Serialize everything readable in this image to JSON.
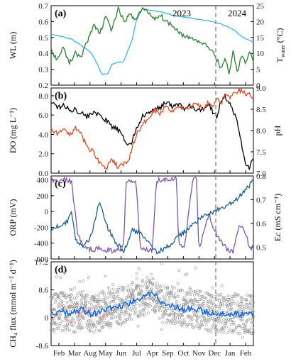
{
  "chart_data": [
    {
      "panel": "(a)",
      "type": "line",
      "ylabel_left": "WL (m)",
      "ylabel_right_main": "T",
      "ylabel_right_sub": "water",
      "ylabel_right_unit": "(°C)",
      "ylim_left": [
        0.2,
        0.7
      ],
      "yticks_left": [
        "0.2",
        "0.3",
        "0.4",
        "0.5",
        "0.6",
        "0.7"
      ],
      "ylim_right": [
        0,
        25
      ],
      "yticks_right": [
        "0",
        "5",
        "10",
        "15",
        "20",
        "25"
      ],
      "annotations": [
        "2023",
        "2024"
      ],
      "series": [
        {
          "axis": "left",
          "color": "#3fb3e0",
          "x": [
            0,
            0.04,
            0.07,
            0.1,
            0.15,
            0.2,
            0.23,
            0.25,
            0.28,
            0.3,
            0.32,
            0.36,
            0.38,
            0.4,
            0.42,
            0.45,
            0.5,
            0.55,
            0.6,
            0.65,
            0.7,
            0.75,
            0.8,
            0.85,
            0.9,
            0.95,
            1.0
          ],
          "values": [
            0.52,
            0.51,
            0.5,
            0.49,
            0.45,
            0.4,
            0.33,
            0.27,
            0.27,
            0.33,
            0.34,
            0.35,
            0.42,
            0.48,
            0.6,
            0.68,
            0.67,
            0.66,
            0.64,
            0.63,
            0.62,
            0.61,
            0.6,
            0.58,
            0.55,
            0.5,
            0.47
          ]
        },
        {
          "axis": "right",
          "color": "#2e7d32",
          "x": [
            0,
            0.03,
            0.06,
            0.09,
            0.12,
            0.15,
            0.18,
            0.21,
            0.24,
            0.27,
            0.3,
            0.33,
            0.36,
            0.39,
            0.42,
            0.45,
            0.48,
            0.51,
            0.54,
            0.57,
            0.6,
            0.63,
            0.66,
            0.69,
            0.72,
            0.75,
            0.78,
            0.8,
            0.82,
            0.84,
            0.86,
            0.88,
            0.9,
            0.92,
            0.94,
            0.96,
            0.98,
            1.0
          ],
          "values": [
            11,
            8,
            12,
            7,
            10,
            9,
            14,
            19,
            16,
            22,
            17,
            24,
            20,
            22,
            21,
            24,
            23,
            21,
            22,
            20,
            19,
            17,
            15,
            15,
            14,
            13,
            12,
            10,
            8,
            5,
            9,
            3,
            11,
            4,
            9,
            7,
            10,
            8
          ]
        }
      ]
    },
    {
      "panel": "(b)",
      "type": "line",
      "ylabel_left": "DO (mg L⁻¹)",
      "ylabel_right": "pH",
      "ylim_left": [
        0,
        8.8
      ],
      "yticks_left": [
        "0.0",
        "2.0",
        "4.0",
        "6.0",
        "8.0"
      ],
      "ylim_right": [
        7.0,
        9.0
      ],
      "yticks_right": [
        "7.0",
        "7.5",
        "8.0",
        "8.5",
        "9.0"
      ],
      "series": [
        {
          "axis": "left",
          "color": "#000000",
          "x": [
            0,
            0.03,
            0.06,
            0.09,
            0.12,
            0.15,
            0.18,
            0.21,
            0.24,
            0.27,
            0.3,
            0.33,
            0.36,
            0.39,
            0.42,
            0.45,
            0.48,
            0.51,
            0.54,
            0.57,
            0.6,
            0.63,
            0.66,
            0.69,
            0.72,
            0.75,
            0.78,
            0.8,
            0.82,
            0.84,
            0.86,
            0.88,
            0.9,
            0.92,
            0.94,
            0.96,
            0.98,
            1.0
          ],
          "values": [
            7.4,
            6.8,
            7.0,
            6.5,
            6.6,
            6.2,
            5.8,
            6.4,
            5.9,
            5.5,
            4.8,
            4.5,
            3.5,
            2.8,
            4.5,
            5.8,
            6.2,
            6.5,
            6.8,
            7.4,
            6.8,
            7.2,
            6.6,
            7.0,
            6.4,
            6.6,
            7.2,
            6.3,
            5.8,
            7.6,
            8.0,
            7.3,
            6.5,
            5.2,
            3.2,
            1.0,
            0.6,
            1.5
          ]
        },
        {
          "axis": "right",
          "color": "#d84b2a",
          "x": [
            0,
            0.03,
            0.06,
            0.09,
            0.12,
            0.15,
            0.18,
            0.21,
            0.24,
            0.27,
            0.3,
            0.33,
            0.36,
            0.39,
            0.42,
            0.45,
            0.48,
            0.51,
            0.54,
            0.57,
            0.6,
            0.63,
            0.66,
            0.69,
            0.72,
            0.75,
            0.78,
            0.8,
            0.82,
            0.84,
            0.86,
            0.88,
            0.9,
            0.92,
            0.94,
            0.96,
            0.98,
            1.0
          ],
          "values": [
            8.0,
            7.95,
            8.0,
            7.9,
            8.05,
            7.9,
            7.6,
            7.5,
            7.25,
            7.1,
            7.3,
            7.15,
            7.2,
            7.4,
            7.9,
            8.1,
            8.3,
            8.5,
            8.4,
            8.6,
            8.45,
            8.6,
            8.5,
            8.55,
            8.65,
            8.5,
            8.7,
            8.55,
            8.8,
            8.6,
            8.9,
            8.75,
            8.85,
            8.9,
            8.95,
            8.85,
            8.85,
            8.8
          ]
        }
      ]
    },
    {
      "panel": "(c)",
      "type": "line",
      "ylabel_left": "ORP (mV)",
      "ylabel_right": "Ec (mS cm⁻¹)",
      "ylim_left": [
        -600,
        450
      ],
      "yticks_left": [
        "-600",
        "-400",
        "-200",
        "0",
        "200",
        "400"
      ],
      "ylim_right": [
        0.45,
        0.8
      ],
      "yticks_right": [
        "0.5",
        "0.6",
        "0.7",
        "0.8"
      ],
      "series": [
        {
          "axis": "left",
          "color": "#7e57a8",
          "x": [
            0,
            0.06,
            0.1,
            0.13,
            0.16,
            0.2,
            0.25,
            0.3,
            0.34,
            0.36,
            0.37,
            0.42,
            0.44,
            0.45,
            0.5,
            0.52,
            0.53,
            0.6,
            0.62,
            0.63,
            0.66,
            0.7,
            0.72,
            0.73,
            0.75,
            0.78,
            0.8,
            0.84,
            0.87,
            0.9,
            0.93,
            0.96,
            0.98,
            1.0
          ],
          "values": [
            390,
            400,
            385,
            -250,
            -460,
            -480,
            -470,
            -500,
            -470,
            -380,
            390,
            400,
            -460,
            -470,
            -490,
            390,
            400,
            420,
            420,
            -400,
            -450,
            420,
            400,
            -480,
            -300,
            -10,
            -200,
            -380,
            -480,
            -500,
            -180,
            -260,
            -450,
            -460
          ]
        },
        {
          "axis": "right",
          "color": "#1f5f8b",
          "x": [
            0,
            0.04,
            0.08,
            0.1,
            0.12,
            0.16,
            0.2,
            0.24,
            0.28,
            0.32,
            0.34,
            0.36,
            0.4,
            0.44,
            0.48,
            0.52,
            0.56,
            0.6,
            0.64,
            0.68,
            0.72,
            0.76,
            0.8,
            0.84,
            0.88,
            0.92,
            0.96,
            1.0
          ],
          "values": [
            0.58,
            0.59,
            0.61,
            0.66,
            0.53,
            0.5,
            0.55,
            0.7,
            0.58,
            0.52,
            0.5,
            0.48,
            0.57,
            0.56,
            0.53,
            0.48,
            0.49,
            0.52,
            0.55,
            0.58,
            0.61,
            0.63,
            0.65,
            0.66,
            0.68,
            0.7,
            0.74,
            0.78
          ]
        }
      ]
    },
    {
      "panel": "(d)",
      "type": "scatter",
      "ylabel_left": "CH₄ flux (mmol m⁻² d⁻¹)",
      "ylim_left": [
        -8.6,
        17.2
      ],
      "yticks_left": [
        "-8.6",
        "0",
        "8.6",
        "17.2"
      ],
      "series": [
        {
          "name": "",
          "color": "#1e6fd9",
          "x": [
            0,
            0.05,
            0.1,
            0.15,
            0.2,
            0.25,
            0.3,
            0.35,
            0.4,
            0.45,
            0.5,
            0.55,
            0.6,
            0.65,
            0.7,
            0.75,
            0.8,
            0.85,
            0.9,
            0.95,
            1.0
          ],
          "values": [
            1.5,
            2.0,
            1.2,
            2.5,
            1.0,
            2.0,
            3.0,
            3.5,
            5.0,
            6.0,
            8.0,
            4.5,
            3.5,
            2.5,
            2.8,
            2.0,
            1.5,
            1.2,
            1.0,
            1.0,
            0.9
          ]
        }
      ]
    }
  ],
  "x_tick_labels": [
    "Feb",
    "Mar",
    "Aug",
    "May",
    "Jun",
    "Jul",
    "Apr",
    "Sep",
    "Oct",
    "Nov",
    "Dec",
    "Jan",
    "Feb"
  ]
}
